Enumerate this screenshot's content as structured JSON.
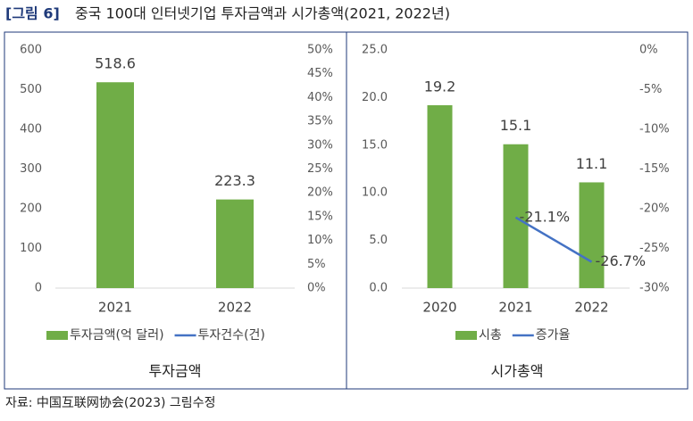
{
  "figure_label": "[그림 6]",
  "title": "중국 100대 인터넷기업 투자금액과 시가총액(2021, 2022년)",
  "source": "자료: 中国互联网协会(2023) 그림수정",
  "chart_data": [
    {
      "type": "bar",
      "caption": "투자금액",
      "categories": [
        "2021",
        "2022"
      ],
      "series": [
        {
          "name": "투자금액(억 달러)",
          "type": "bar",
          "color": "#70ad47",
          "values": [
            518.6,
            223.3
          ]
        },
        {
          "name": "투자건수(건)",
          "type": "line",
          "color": "#4472c4",
          "axis": "y2",
          "values": [
            null,
            null
          ]
        }
      ],
      "ylim": [
        0,
        600
      ],
      "yticks": [
        0,
        100,
        200,
        300,
        400,
        500,
        600
      ],
      "y2lim": [
        0,
        50
      ],
      "y2ticks": [
        {
          "value": 0,
          "label": "0%"
        },
        {
          "value": 5,
          "label": "5%"
        },
        {
          "value": 10,
          "label": "10%"
        },
        {
          "value": 15,
          "label": "15%"
        },
        {
          "value": 20,
          "label": "20%"
        },
        {
          "value": 25,
          "label": "25%"
        },
        {
          "value": 30,
          "label": "30%"
        },
        {
          "value": 35,
          "label": "35%"
        },
        {
          "value": 40,
          "label": "40%"
        },
        {
          "value": 45,
          "label": "45%"
        },
        {
          "value": 50,
          "label": "50%"
        }
      ],
      "grid": false
    },
    {
      "type": "bar",
      "caption": "시가총액",
      "categories": [
        "2020",
        "2021",
        "2022"
      ],
      "series": [
        {
          "name": "시총",
          "type": "bar",
          "color": "#70ad47",
          "values": [
            19.2,
            15.1,
            11.1
          ]
        },
        {
          "name": "증가율",
          "type": "line",
          "color": "#4472c4",
          "axis": "y2",
          "values": [
            null,
            -21.1,
            -26.7
          ],
          "value_labels": [
            null,
            "-21.1%",
            "-26.7%"
          ]
        }
      ],
      "ylim": [
        0,
        25
      ],
      "yticks": [
        {
          "value": 0,
          "label": "0.0"
        },
        {
          "value": 5,
          "label": "5.0"
        },
        {
          "value": 10,
          "label": "10.0"
        },
        {
          "value": 15,
          "label": "15.0"
        },
        {
          "value": 20,
          "label": "20.0"
        },
        {
          "value": 25,
          "label": "25.0"
        }
      ],
      "y2lim": [
        -30,
        0
      ],
      "y2ticks": [
        {
          "value": 0,
          "label": "0%"
        },
        {
          "value": -5,
          "label": "-5%"
        },
        {
          "value": -10,
          "label": "-10%"
        },
        {
          "value": -15,
          "label": "-15%"
        },
        {
          "value": -20,
          "label": "-20%"
        },
        {
          "value": -25,
          "label": "-25%"
        },
        {
          "value": -30,
          "label": "-30%"
        }
      ],
      "grid": false
    }
  ]
}
